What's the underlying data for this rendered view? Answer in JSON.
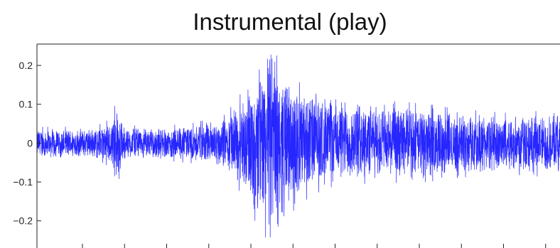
{
  "chart_data": {
    "type": "line",
    "title": "Instrumental (play)",
    "xlabel": "",
    "ylabel": "",
    "ylim": [
      -0.27,
      0.255
    ],
    "y_ticks": [
      -0.2,
      -0.1,
      0,
      0.1,
      0.2
    ],
    "y_tick_labels": [
      "−0.2",
      "−0.1",
      "0",
      "0.1",
      "0.2"
    ],
    "x_tick_count": 13,
    "x_tick_labels": [],
    "grid": false,
    "legend": "none",
    "series": [
      {
        "color": "#0000ff",
        "samples": 3600,
        "amplitude_envelope": [
          [
            0.0,
            0.04
          ],
          [
            0.05,
            0.04
          ],
          [
            0.1,
            0.04
          ],
          [
            0.13,
            0.05
          ],
          [
            0.15,
            0.08
          ],
          [
            0.17,
            0.045
          ],
          [
            0.22,
            0.04
          ],
          [
            0.3,
            0.05
          ],
          [
            0.36,
            0.07
          ],
          [
            0.4,
            0.14
          ],
          [
            0.42,
            0.2
          ],
          [
            0.44,
            0.255
          ],
          [
            0.45,
            0.27
          ],
          [
            0.47,
            0.2
          ],
          [
            0.5,
            0.15
          ],
          [
            0.55,
            0.12
          ],
          [
            0.6,
            0.11
          ],
          [
            0.65,
            0.1
          ],
          [
            0.7,
            0.1
          ],
          [
            0.75,
            0.095
          ],
          [
            0.8,
            0.085
          ],
          [
            0.85,
            0.08
          ],
          [
            0.9,
            0.075
          ],
          [
            0.95,
            0.08
          ],
          [
            1.0,
            0.08
          ]
        ],
        "dc_offset_envelope": [
          [
            0.0,
            0.0
          ],
          [
            0.5,
            0.0
          ],
          [
            0.56,
            0.01
          ],
          [
            0.62,
            0.005
          ],
          [
            0.75,
            0.0
          ],
          [
            1.0,
            -0.002
          ]
        ]
      }
    ]
  }
}
